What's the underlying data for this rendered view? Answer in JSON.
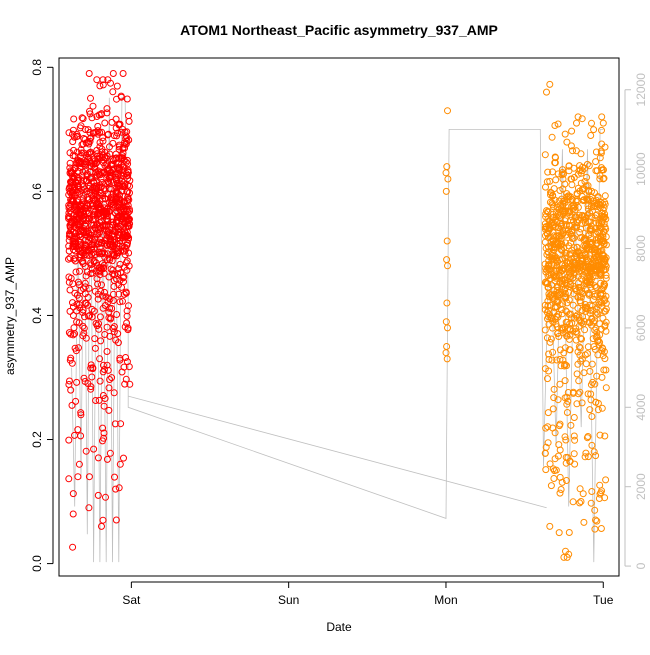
{
  "chart_data": {
    "type": "scatter",
    "title": "ATOM1 Northeast_Pacific asymmetry_937_AMP",
    "xlabel": "Date",
    "ylabel": "asymmetry_937_AMP",
    "x_ticks": [
      "Sat",
      "Sun",
      "Mon",
      "Tue"
    ],
    "x_tick_days": [
      1,
      2,
      3,
      4
    ],
    "xlim_days": [
      0.54,
      4.1
    ],
    "ylim": [
      -0.02,
      0.815
    ],
    "y_ticks": [
      0.0,
      0.2,
      0.4,
      0.6,
      0.8
    ],
    "y_tick_labels": [
      "0.0",
      "0.2",
      "0.4",
      "0.6",
      "0.8"
    ],
    "secondary_y": {
      "ylim": [
        -250,
        12800
      ],
      "ticks": [
        0,
        2000,
        4000,
        6000,
        8000,
        10000,
        12000
      ],
      "tick_labels": [
        "0",
        "2000",
        "4000",
        "6000",
        "8000",
        "10000",
        "12000"
      ],
      "color": "#c0c0c0",
      "line": {
        "color": "#c0c0c0",
        "points": [
          [
            0.62,
            5000
          ],
          [
            0.64,
            1500
          ],
          [
            0.66,
            9000
          ],
          [
            0.68,
            2200
          ],
          [
            0.7,
            10500
          ],
          [
            0.72,
            800
          ],
          [
            0.74,
            11000
          ],
          [
            0.76,
            100
          ],
          [
            0.78,
            10000
          ],
          [
            0.8,
            100
          ],
          [
            0.82,
            9500
          ],
          [
            0.84,
            100
          ],
          [
            0.86,
            11800
          ],
          [
            0.88,
            100
          ],
          [
            0.9,
            10200
          ],
          [
            0.92,
            100
          ],
          [
            0.94,
            11800
          ],
          [
            0.96,
            11800
          ],
          [
            0.98,
            6700
          ],
          [
            0.98,
            4000
          ],
          [
            3.0,
            1200
          ],
          [
            3.02,
            11000
          ],
          [
            3.6,
            11000
          ],
          [
            3.62,
            2500
          ],
          [
            3.66,
            9000
          ],
          [
            3.7,
            3000
          ],
          [
            3.74,
            10500
          ],
          [
            3.78,
            1500
          ],
          [
            3.82,
            9000
          ],
          [
            3.86,
            3500
          ],
          [
            3.9,
            10500
          ],
          [
            3.94,
            100
          ],
          [
            3.98,
            11000
          ],
          [
            4.0,
            11000
          ]
        ]
      }
    },
    "connector_line": {
      "color": "#c0c0c0",
      "points": [
        [
          0.98,
          0.27
        ],
        [
          3.64,
          0.09
        ]
      ]
    },
    "series": [
      {
        "color": "#ff0000",
        "marker": "open-circle",
        "x_range_days": [
          0.6,
          0.99
        ],
        "y_bands": [
          {
            "count": 900,
            "mean": 0.57,
            "sd": 0.075
          },
          {
            "count": 80,
            "mean": 0.36,
            "sd": 0.05
          },
          {
            "count": 40,
            "mean": 0.2,
            "sd": 0.07
          }
        ],
        "extra_points": [
          [
            0.78,
            0.78
          ],
          [
            0.8,
            0.77
          ],
          [
            0.82,
            0.78
          ],
          [
            0.85,
            0.78
          ],
          [
            0.74,
            0.75
          ],
          [
            0.66,
            0.14
          ],
          [
            0.67,
            0.16
          ],
          [
            0.73,
            0.09
          ],
          [
            0.81,
            0.06
          ],
          [
            0.82,
            0.07
          ],
          [
            0.79,
            0.11
          ],
          [
            0.63,
            0.08
          ],
          [
            0.93,
            0.16
          ],
          [
            0.95,
            0.17
          ],
          [
            0.9,
            0.12
          ]
        ]
      },
      {
        "color": "#ff8c00",
        "marker": "open-circle",
        "x_range_days": [
          3.63,
          4.02
        ],
        "y_bands": [
          {
            "count": 850,
            "mean": 0.5,
            "sd": 0.08
          },
          {
            "count": 90,
            "mean": 0.27,
            "sd": 0.07
          },
          {
            "count": 40,
            "mean": 0.13,
            "sd": 0.04
          }
        ],
        "extra_points": [
          [
            3.75,
            0.01
          ],
          [
            3.76,
            0.02
          ],
          [
            3.78,
            0.015
          ],
          [
            3.72,
            0.05
          ],
          [
            3.66,
            0.06
          ],
          [
            3.84,
            0.72
          ],
          [
            3.83,
            0.71
          ],
          [
            3.99,
            0.72
          ],
          [
            4.0,
            0.71
          ],
          [
            3.92,
            0.69
          ]
        ]
      },
      {
        "color": "#ff8c00",
        "marker": "open-circle",
        "x_range_days": [
          3.0,
          3.02
        ],
        "points": [
          [
            3.01,
            0.73
          ],
          [
            3.005,
            0.64
          ],
          [
            3.0,
            0.63
          ],
          [
            3.012,
            0.62
          ],
          [
            3.002,
            0.6
          ],
          [
            3.008,
            0.52
          ],
          [
            3.004,
            0.49
          ],
          [
            3.01,
            0.48
          ],
          [
            3.006,
            0.42
          ],
          [
            3.002,
            0.39
          ],
          [
            3.01,
            0.38
          ],
          [
            3.004,
            0.35
          ],
          [
            3.0,
            0.34
          ],
          [
            3.008,
            0.33
          ]
        ]
      }
    ]
  }
}
